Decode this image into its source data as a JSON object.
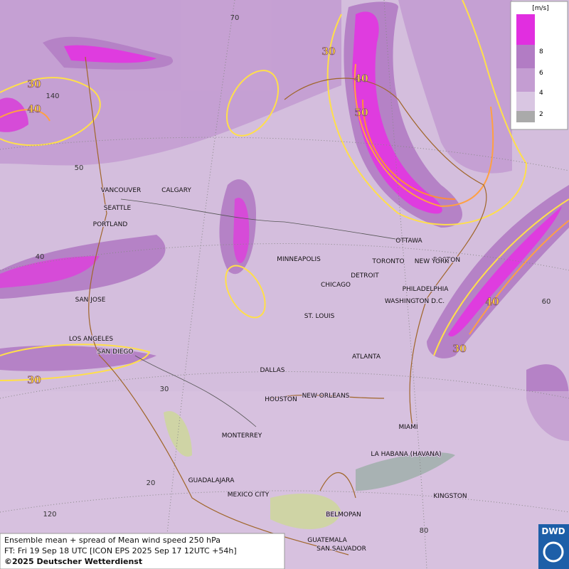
{
  "map": {
    "cities": [
      "VANCOUVER",
      "CALGARY",
      "SEATTLE",
      "PORTLAND",
      "SAN JOSE",
      "LOS ANGELES",
      "SAN DIEGO",
      "MINNEAPOLIS",
      "CHICAGO",
      "DETROIT",
      "TORONTO",
      "OTTAWA",
      "BOSTON",
      "NEW YORK",
      "PHILADELPHIA",
      "WASHINGTON D.C.",
      "ST. LOUIS",
      "ATLANTA",
      "DALLAS",
      "HOUSTON",
      "NEW ORLEANS",
      "MIAMI",
      "MONTERREY",
      "LA HABANA (HAVANA)",
      "GUADALAJARA",
      "MEXICO CITY",
      "KINGSTON",
      "BELMOPAN",
      "GUATEMALA",
      "SAN SALVADOR"
    ],
    "contour_labels": [
      30,
      40,
      30,
      40,
      50,
      40,
      30,
      30
    ],
    "grid_labels": [
      70,
      140,
      50,
      40,
      60,
      30,
      20,
      120,
      80
    ]
  },
  "legend": {
    "unit": "[m/s]",
    "ticks": [
      8,
      6,
      4,
      2
    ]
  },
  "caption": {
    "line1": "Ensemble mean + spread of Mean wind speed 250 hPa",
    "line2": "FT: Fri 19 Sep 18 UTC [ICON EPS 2025 Sep 17 12UTC +54h]",
    "line3": "©2025 Deutscher Wetterdienst"
  },
  "logo": "DWD"
}
